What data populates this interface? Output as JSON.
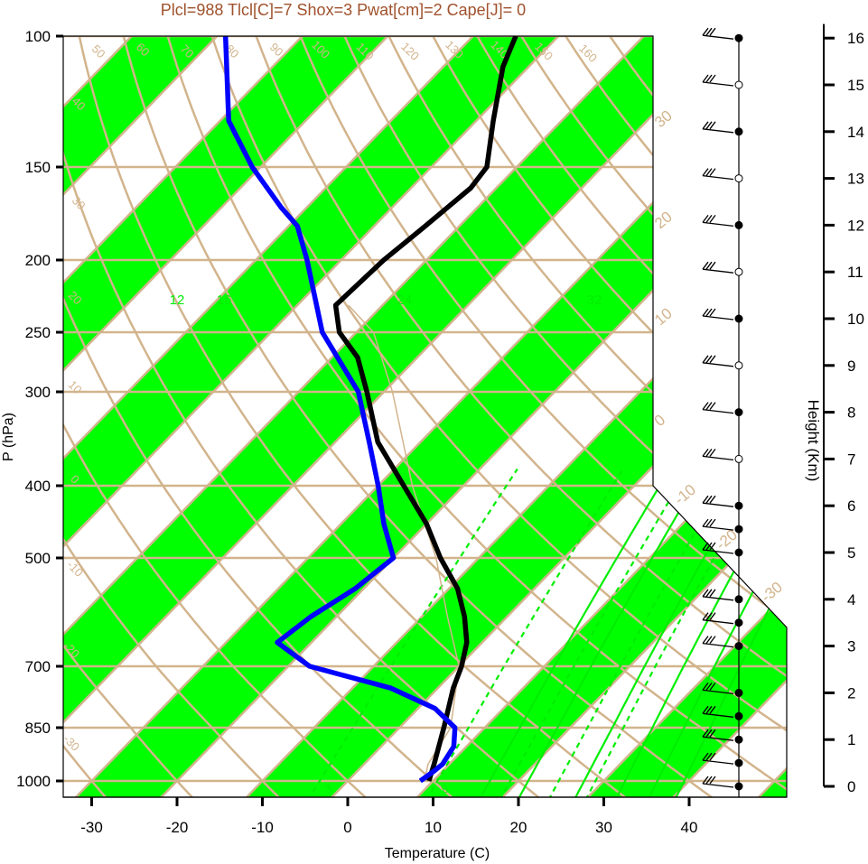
{
  "title": "Plcl=988 Tlcl[C]=7 Shox=3 Pwat[cm]=2 Cape[J]= 0",
  "colors": {
    "title": "#a0522d",
    "isotherm": "#d2b48c",
    "band": "#00ff00",
    "mixing_ratio": "#00ee00",
    "temperature": "#000000",
    "dewpoint": "#0000ff"
  },
  "chart_data": {
    "type": "line",
    "subtype": "skew-t log-p sounding",
    "xlabel": "Temperature (C)",
    "ylabel": "P (hPa)",
    "y2label": "Height (Km)",
    "xlim": [
      -34,
      52
    ],
    "ylim": [
      1050,
      100
    ],
    "yscale": "log",
    "grid": true,
    "x_ticks": [
      -30,
      -20,
      -10,
      0,
      10,
      20,
      30,
      40
    ],
    "pressure_ticks": [
      100,
      150,
      200,
      250,
      300,
      400,
      500,
      700,
      850,
      1000
    ],
    "height_ticks": [
      0,
      1,
      2,
      3,
      4,
      5,
      6,
      7,
      8,
      9,
      10,
      11,
      12,
      13,
      14,
      15,
      16
    ],
    "isotherm_labels": [
      -30,
      -20,
      -10,
      0,
      10,
      20,
      30,
      40,
      50,
      60,
      70,
      80,
      90,
      100,
      110,
      120,
      130,
      140,
      150,
      160
    ],
    "dry_adiabat_labels": [
      -30,
      -20,
      -10,
      0,
      10,
      20,
      30
    ],
    "mixing_ratio_labels": [
      12,
      16,
      24,
      32
    ],
    "moist_adiabat_labels": [
      3,
      8
    ],
    "series": [
      {
        "name": "",
        "role": "temperature",
        "p": [
          1000,
          950,
          850,
          750,
          700,
          650,
          600,
          550,
          500,
          450,
          400,
          350,
          300,
          270,
          250,
          230,
          200,
          180,
          160,
          150,
          130,
          110,
          100
        ],
        "t": [
          9.5,
          8.2,
          5.2,
          1.8,
          0.3,
          -1.8,
          -5.0,
          -9.0,
          -14.5,
          -20.0,
          -27.0,
          -35.0,
          -42.0,
          -47.0,
          -52.0,
          -55.5,
          -55.0,
          -54.0,
          -53.0,
          -53.5,
          -58.0,
          -63.0,
          -65.0
        ]
      },
      {
        "name": "",
        "role": "dewpoint",
        "p": [
          1000,
          970,
          950,
          900,
          850,
          800,
          750,
          700,
          650,
          600,
          550,
          500,
          450,
          400,
          350,
          300,
          250,
          200,
          180,
          170,
          150,
          130,
          100
        ],
        "td": [
          8.5,
          9.0,
          9.2,
          8.5,
          6.5,
          2.0,
          -5.5,
          -17.5,
          -24.0,
          -23.0,
          -21.0,
          -20.0,
          -25.0,
          -30.0,
          -36.0,
          -43.0,
          -54.0,
          -64.0,
          -69.0,
          -73.0,
          -81.0,
          -89.0,
          -99.0
        ]
      }
    ],
    "wind_barb_heights_km": [
      0,
      0.5,
      1,
      1.5,
      2,
      3,
      3.5,
      4,
      5,
      5.5,
      6,
      7,
      8,
      9,
      10,
      11,
      12,
      13,
      14,
      15,
      16
    ]
  }
}
